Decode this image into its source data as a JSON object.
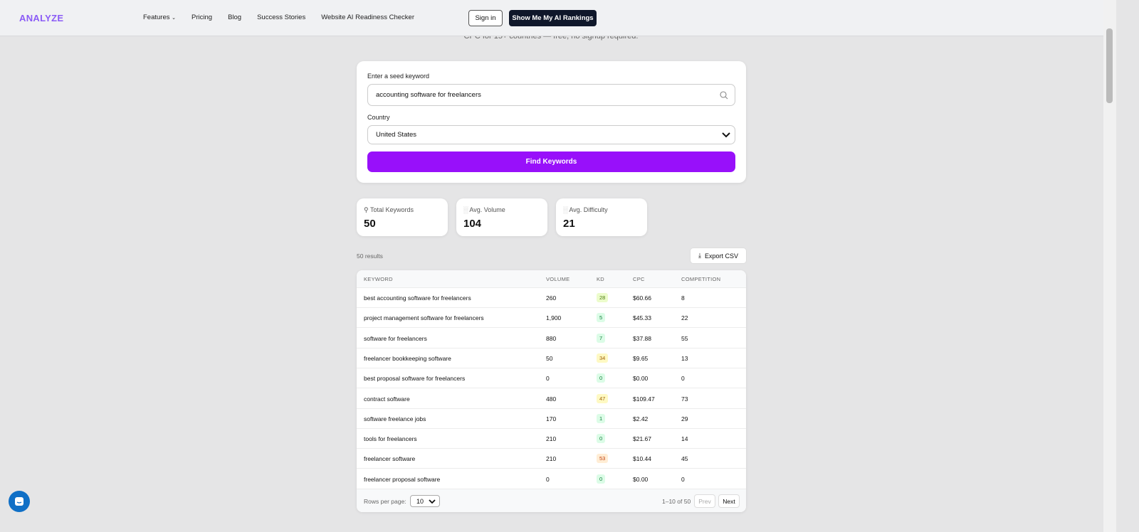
{
  "header": {
    "logo": "ANALYZE",
    "nav": [
      "Features",
      "Pricing",
      "Blog",
      "Success Stories",
      "Website AI Readiness Checker"
    ],
    "sign_in": "Sign in",
    "cta": "Show Me My AI Rankings"
  },
  "subtitle": "CPC for 15+ countries — free, no signup required.",
  "form": {
    "keyword_label": "Enter a seed keyword",
    "keyword_value": "accounting software for freelancers",
    "country_label": "Country",
    "country_value": "United States",
    "submit": "Find Keywords"
  },
  "stats": [
    {
      "label": "Total Keywords",
      "value": "50",
      "icon": "search-icon"
    },
    {
      "label": "Avg. Volume",
      "value": "104",
      "icon": "bar-chart-icon"
    },
    {
      "label": "Avg. Difficulty",
      "value": "21",
      "icon": "bar-chart-icon"
    }
  ],
  "results_count": "50 results",
  "export": "Export CSV",
  "table": {
    "columns": [
      "KEYWORD",
      "VOLUME",
      "KD",
      "CPC",
      "COMPETITION"
    ],
    "rows": [
      {
        "keyword": "best accounting software for freelancers",
        "volume": "260",
        "kd": "28",
        "cpc": "$60.66",
        "competition": "8"
      },
      {
        "keyword": "project management software for freelancers",
        "volume": "1,900",
        "kd": "5",
        "cpc": "$45.33",
        "competition": "22"
      },
      {
        "keyword": "software for freelancers",
        "volume": "880",
        "kd": "7",
        "cpc": "$37.88",
        "competition": "55"
      },
      {
        "keyword": "freelancer bookkeeping software",
        "volume": "50",
        "kd": "34",
        "cpc": "$9.65",
        "competition": "13"
      },
      {
        "keyword": "best proposal software for freelancers",
        "volume": "0",
        "kd": "0",
        "cpc": "$0.00",
        "competition": "0"
      },
      {
        "keyword": "contract software",
        "volume": "480",
        "kd": "47",
        "cpc": "$109.47",
        "competition": "73"
      },
      {
        "keyword": "software freelance jobs",
        "volume": "170",
        "kd": "1",
        "cpc": "$2.42",
        "competition": "29"
      },
      {
        "keyword": "tools for freelancers",
        "volume": "210",
        "kd": "0",
        "cpc": "$21.67",
        "competition": "14"
      },
      {
        "keyword": "freelancer software",
        "volume": "210",
        "kd": "53",
        "cpc": "$10.44",
        "competition": "45"
      },
      {
        "keyword": "freelancer proposal software",
        "volume": "0",
        "kd": "0",
        "cpc": "$0.00",
        "competition": "0"
      }
    ]
  },
  "pagination": {
    "rows_label": "Rows per page:",
    "rows_value": "10",
    "range": "1–10 of 50",
    "prev": "Prev",
    "next": "Next"
  },
  "colors": {
    "accent": "#9810fa",
    "logo": "#8b5cf6",
    "cta_bg": "#0f172a"
  }
}
